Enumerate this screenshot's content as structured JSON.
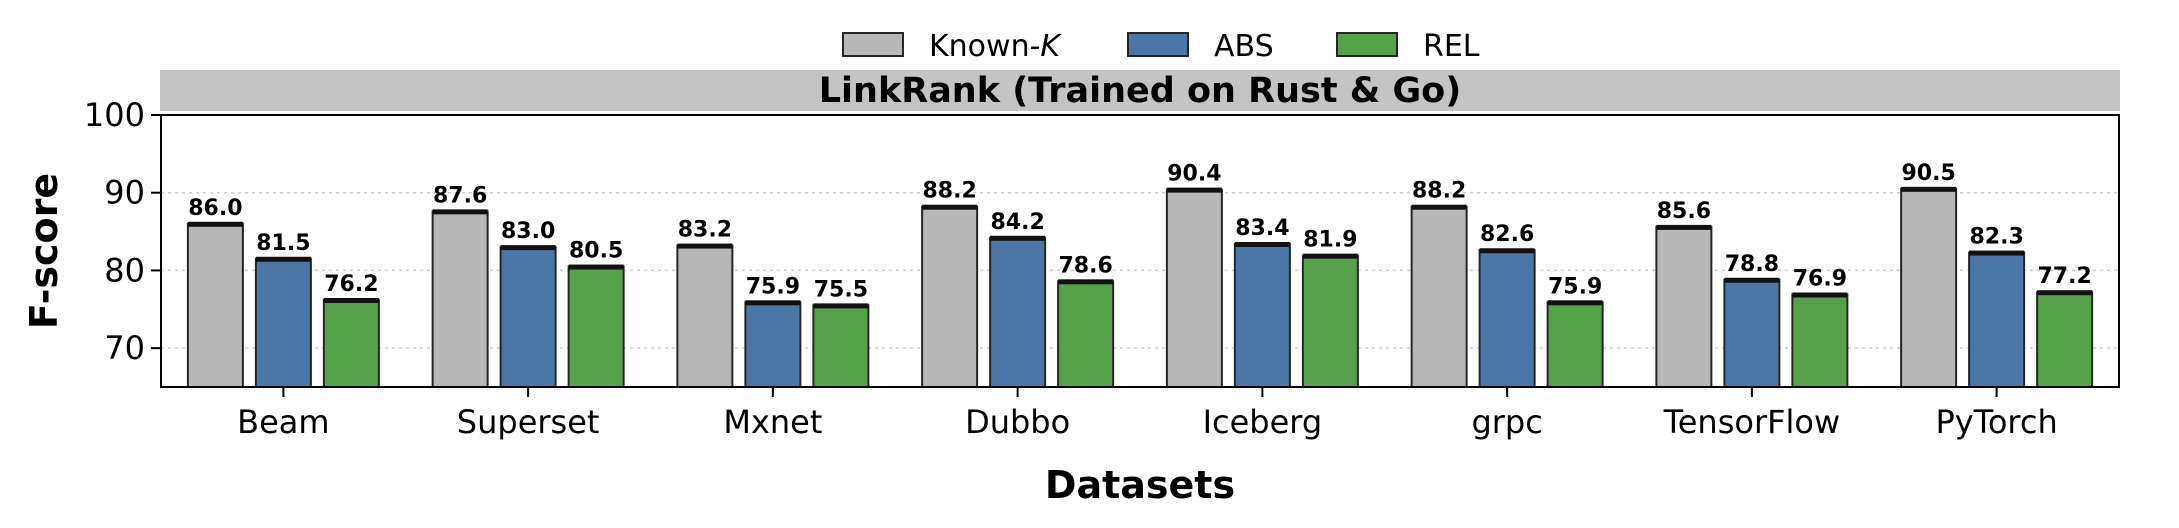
{
  "chart_data": {
    "type": "bar",
    "title": "LinkRank (Trained on Rust & Go)",
    "xlabel": "Datasets",
    "ylabel": "F-score",
    "ylim": [
      65,
      100
    ],
    "yticks": [
      70,
      80,
      90,
      100
    ],
    "grid": "horizontal dotted",
    "legend_position": "top-center",
    "categories": [
      "Beam",
      "Superset",
      "Mxnet",
      "Dubbo",
      "Iceberg",
      "grpc",
      "TensorFlow",
      "PyTorch"
    ],
    "series": [
      {
        "name": "Known-K",
        "legend_prefix": "Known-",
        "legend_italic": "K",
        "color": "#b8b8b8",
        "values": [
          86.0,
          87.6,
          83.2,
          88.2,
          90.4,
          88.2,
          85.6,
          90.5
        ],
        "labels": [
          "86.0",
          "87.6",
          "83.2",
          "88.2",
          "90.4",
          "88.2",
          "85.6",
          "90.5"
        ]
      },
      {
        "name": "ABS",
        "legend_prefix": "ABS",
        "legend_italic": "",
        "color": "#4a76a8",
        "values": [
          81.5,
          83.0,
          75.9,
          84.2,
          83.4,
          82.6,
          78.8,
          82.3
        ],
        "labels": [
          "81.5",
          "83.0",
          "75.9",
          "84.2",
          "83.4",
          "82.6",
          "78.8",
          "82.3"
        ]
      },
      {
        "name": "REL",
        "legend_prefix": "REL",
        "legend_italic": "",
        "color": "#55a24a",
        "values": [
          76.2,
          80.5,
          75.5,
          78.6,
          81.9,
          75.9,
          76.9,
          77.2
        ],
        "labels": [
          "76.2",
          "80.5",
          "75.5",
          "78.6",
          "81.9",
          "75.9",
          "76.9",
          "77.2"
        ]
      }
    ]
  }
}
